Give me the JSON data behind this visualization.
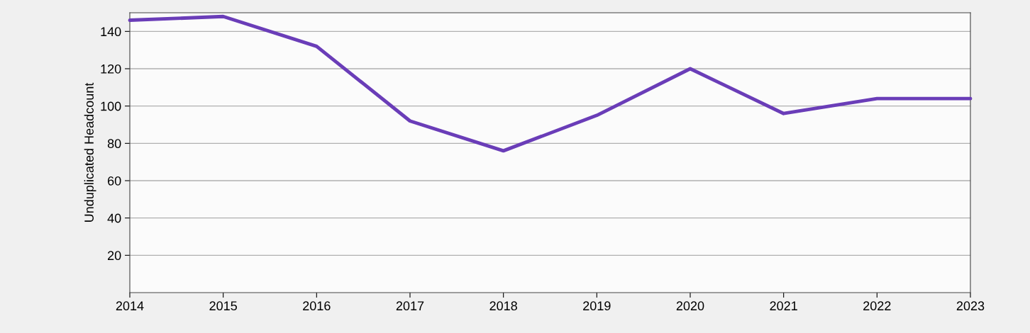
{
  "chart_data": {
    "type": "line",
    "ylabel": "Unduplicated Headcount",
    "x": [
      2014,
      2015,
      2016,
      2017,
      2018,
      2019,
      2020,
      2021,
      2022,
      2023
    ],
    "series": [
      {
        "color": "#6a3db8",
        "values": [
          146,
          148,
          132,
          92,
          76,
          95,
          120,
          96,
          104,
          104
        ]
      }
    ],
    "xlim": [
      2014,
      2023
    ],
    "xticks": [
      2014,
      2015,
      2016,
      2017,
      2018,
      2019,
      2020,
      2021,
      2022,
      2023
    ],
    "ylim": [
      0,
      150
    ],
    "yticks": [
      20,
      40,
      60,
      80,
      100,
      120,
      140
    ],
    "grid": "y",
    "legend": false,
    "marker": "none",
    "line_style": "solid"
  }
}
